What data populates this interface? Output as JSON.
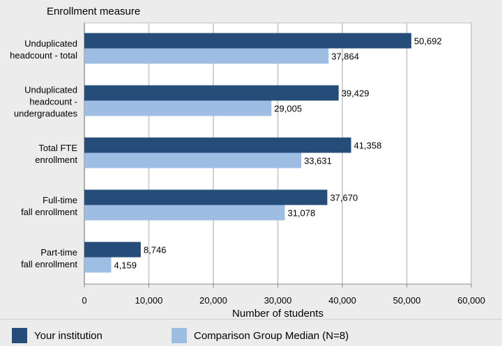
{
  "chart_data": {
    "type": "bar",
    "orientation": "horizontal",
    "title": "Enrollment measure",
    "xlabel": "Number of students",
    "categories": [
      [
        "Unduplicated",
        "headcount - total"
      ],
      [
        "Unduplicated",
        "headcount -",
        "undergraduates"
      ],
      [
        "Total FTE",
        "enrollment"
      ],
      [
        "Full-time",
        "fall enrollment"
      ],
      [
        "Part-time",
        "fall enrollment"
      ]
    ],
    "series": [
      {
        "name": "Your institution",
        "color": "#264c7a",
        "values": [
          50692,
          39429,
          41358,
          37670,
          8746
        ]
      },
      {
        "name": "Comparison Group Median (N=8)",
        "color": "#9dbde3",
        "values": [
          37864,
          29005,
          33631,
          31078,
          4159
        ]
      }
    ],
    "xlim": [
      0,
      60000
    ],
    "xticks": [
      0,
      10000,
      20000,
      30000,
      40000,
      50000,
      60000
    ],
    "grid": true,
    "legend_position": "bottom"
  }
}
